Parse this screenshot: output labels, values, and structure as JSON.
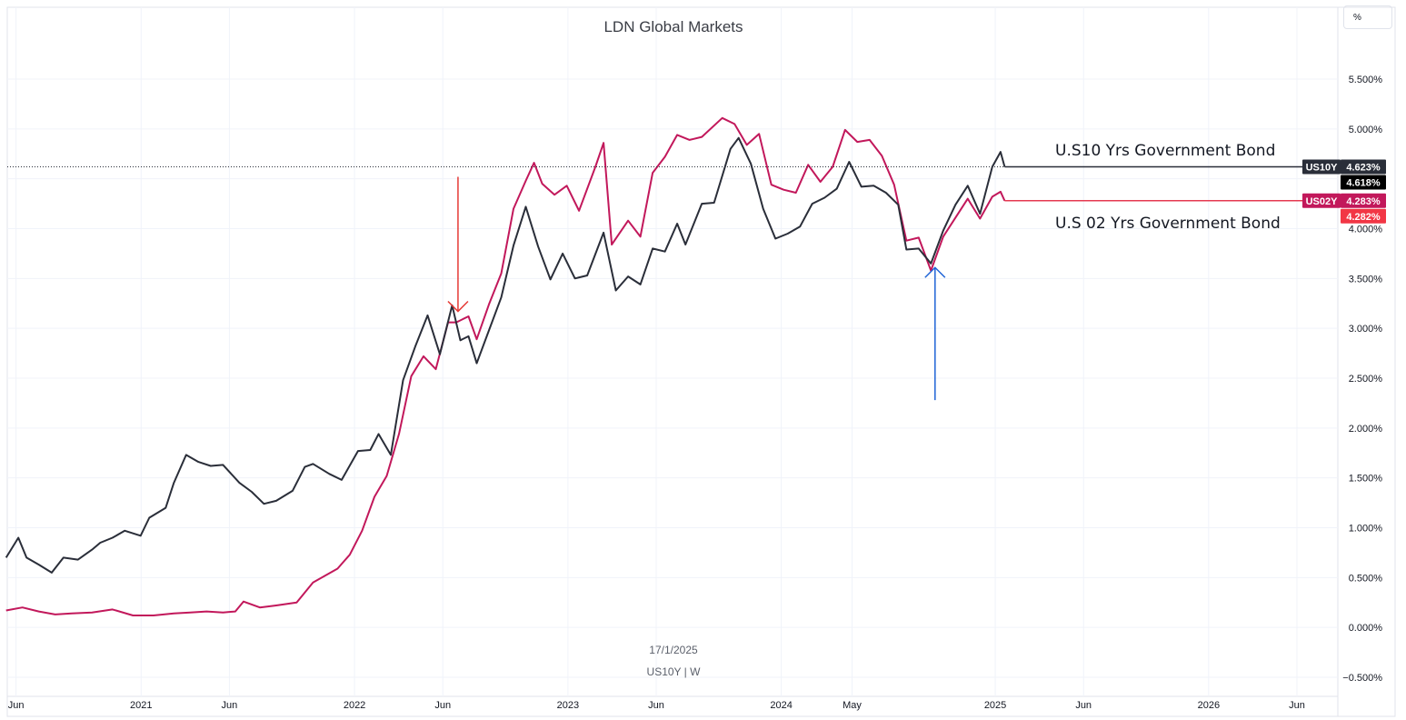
{
  "chart_data": {
    "type": "line",
    "title": "LDN Global Markets",
    "unit_button": "%",
    "watermark": {
      "date": "17/1/2025",
      "symbol": "US10Y | W"
    },
    "y_ticks": [
      5.5,
      5.0,
      4.5,
      4.0,
      3.5,
      3.0,
      2.5,
      2.0,
      1.5,
      1.0,
      0.5,
      0.0,
      -0.5
    ],
    "y_tick_labels": [
      "5.500%",
      "5.000%",
      "4.500%",
      "4.000%",
      "3.500%",
      "3.000%",
      "2.500%",
      "2.000%",
      "1.500%",
      "1.000%",
      "0.500%",
      "0.000%",
      "−0.500%"
    ],
    "ylim": [
      -0.5,
      5.5
    ],
    "x_ticks": [
      {
        "label": "Jun",
        "date": "2020-06-01"
      },
      {
        "label": "2021",
        "date": "2021-01-01"
      },
      {
        "label": "Jun",
        "date": "2021-06-01"
      },
      {
        "label": "2022",
        "date": "2022-01-01"
      },
      {
        "label": "Jun",
        "date": "2022-06-01"
      },
      {
        "label": "2023",
        "date": "2023-01-01"
      },
      {
        "label": "Jun",
        "date": "2023-06-01"
      },
      {
        "label": "2024",
        "date": "2024-01-01"
      },
      {
        "label": "May",
        "date": "2024-05-01"
      },
      {
        "label": "2025",
        "date": "2025-01-01"
      },
      {
        "label": "Jun",
        "date": "2025-06-01"
      },
      {
        "label": "2026",
        "date": "2026-01-01"
      },
      {
        "label": "Jun",
        "date": "2026-06-01"
      }
    ],
    "xlim": [
      "2020-05-17",
      "2026-08-10"
    ],
    "series": [
      {
        "name": "US10Y",
        "color": "#2a2e39",
        "points": [
          [
            "2020-05-15",
            0.7
          ],
          [
            "2020-06-05",
            0.9
          ],
          [
            "2020-06-19",
            0.7
          ],
          [
            "2020-07-10",
            0.63
          ],
          [
            "2020-08-01",
            0.55
          ],
          [
            "2020-08-21",
            0.7
          ],
          [
            "2020-09-15",
            0.68
          ],
          [
            "2020-10-09",
            0.78
          ],
          [
            "2020-10-23",
            0.85
          ],
          [
            "2020-11-13",
            0.9
          ],
          [
            "2020-12-04",
            0.97
          ],
          [
            "2020-12-31",
            0.92
          ],
          [
            "2021-01-15",
            1.1
          ],
          [
            "2021-02-12",
            1.2
          ],
          [
            "2021-02-26",
            1.45
          ],
          [
            "2021-03-19",
            1.73
          ],
          [
            "2021-04-09",
            1.66
          ],
          [
            "2021-04-30",
            1.62
          ],
          [
            "2021-05-21",
            1.63
          ],
          [
            "2021-06-18",
            1.45
          ],
          [
            "2021-07-09",
            1.36
          ],
          [
            "2021-07-30",
            1.24
          ],
          [
            "2021-08-20",
            1.27
          ],
          [
            "2021-09-17",
            1.37
          ],
          [
            "2021-10-08",
            1.61
          ],
          [
            "2021-10-22",
            1.64
          ],
          [
            "2021-11-19",
            1.54
          ],
          [
            "2021-12-10",
            1.48
          ],
          [
            "2022-01-07",
            1.77
          ],
          [
            "2022-01-28",
            1.78
          ],
          [
            "2022-02-11",
            1.94
          ],
          [
            "2022-03-04",
            1.73
          ],
          [
            "2022-03-25",
            2.48
          ],
          [
            "2022-04-15",
            2.82
          ],
          [
            "2022-05-06",
            3.13
          ],
          [
            "2022-05-27",
            2.74
          ],
          [
            "2022-06-17",
            3.23
          ],
          [
            "2022-07-01",
            2.88
          ],
          [
            "2022-07-15",
            2.92
          ],
          [
            "2022-07-29",
            2.65
          ],
          [
            "2022-08-19",
            2.98
          ],
          [
            "2022-09-09",
            3.31
          ],
          [
            "2022-09-30",
            3.83
          ],
          [
            "2022-10-21",
            4.22
          ],
          [
            "2022-11-11",
            3.82
          ],
          [
            "2022-12-02",
            3.49
          ],
          [
            "2022-12-23",
            3.75
          ],
          [
            "2023-01-13",
            3.5
          ],
          [
            "2023-02-03",
            3.53
          ],
          [
            "2023-03-03",
            3.96
          ],
          [
            "2023-03-24",
            3.38
          ],
          [
            "2023-04-14",
            3.52
          ],
          [
            "2023-05-05",
            3.44
          ],
          [
            "2023-05-26",
            3.8
          ],
          [
            "2023-06-16",
            3.77
          ],
          [
            "2023-07-07",
            4.05
          ],
          [
            "2023-07-21",
            3.84
          ],
          [
            "2023-08-18",
            4.25
          ],
          [
            "2023-09-08",
            4.26
          ],
          [
            "2023-10-06",
            4.8
          ],
          [
            "2023-10-20",
            4.91
          ],
          [
            "2023-11-10",
            4.65
          ],
          [
            "2023-12-01",
            4.2
          ],
          [
            "2023-12-22",
            3.9
          ],
          [
            "2024-01-12",
            3.95
          ],
          [
            "2024-02-02",
            4.02
          ],
          [
            "2024-02-23",
            4.25
          ],
          [
            "2024-03-15",
            4.31
          ],
          [
            "2024-04-05",
            4.4
          ],
          [
            "2024-04-26",
            4.67
          ],
          [
            "2024-05-17",
            4.42
          ],
          [
            "2024-06-07",
            4.43
          ],
          [
            "2024-06-28",
            4.36
          ],
          [
            "2024-07-19",
            4.24
          ],
          [
            "2024-08-02",
            3.79
          ],
          [
            "2024-08-23",
            3.8
          ],
          [
            "2024-09-13",
            3.65
          ],
          [
            "2024-10-04",
            3.98
          ],
          [
            "2024-10-25",
            4.24
          ],
          [
            "2024-11-15",
            4.43
          ],
          [
            "2024-12-06",
            4.15
          ],
          [
            "2024-12-27",
            4.62
          ],
          [
            "2025-01-10",
            4.77
          ],
          [
            "2025-01-17",
            4.62
          ]
        ],
        "last_value_label": "4.623%",
        "price_label": "4.618%",
        "label_tag": "US10Y",
        "annotation": "U.S10 Yrs Government Bond"
      },
      {
        "name": "US02Y",
        "color": "#c2185b",
        "points": [
          [
            "2020-05-15",
            0.17
          ],
          [
            "2020-06-12",
            0.2
          ],
          [
            "2020-07-10",
            0.16
          ],
          [
            "2020-08-07",
            0.13
          ],
          [
            "2020-09-04",
            0.14
          ],
          [
            "2020-10-09",
            0.15
          ],
          [
            "2020-11-13",
            0.18
          ],
          [
            "2020-12-18",
            0.12
          ],
          [
            "2021-01-22",
            0.12
          ],
          [
            "2021-02-26",
            0.14
          ],
          [
            "2021-03-26",
            0.15
          ],
          [
            "2021-04-23",
            0.16
          ],
          [
            "2021-05-21",
            0.15
          ],
          [
            "2021-06-11",
            0.16
          ],
          [
            "2021-06-25",
            0.26
          ],
          [
            "2021-07-23",
            0.2
          ],
          [
            "2021-08-20",
            0.22
          ],
          [
            "2021-09-24",
            0.25
          ],
          [
            "2021-10-22",
            0.45
          ],
          [
            "2021-11-12",
            0.52
          ],
          [
            "2021-12-03",
            0.59
          ],
          [
            "2021-12-24",
            0.73
          ],
          [
            "2022-01-14",
            0.97
          ],
          [
            "2022-02-04",
            1.31
          ],
          [
            "2022-02-25",
            1.52
          ],
          [
            "2022-03-18",
            1.94
          ],
          [
            "2022-04-08",
            2.52
          ],
          [
            "2022-04-29",
            2.72
          ],
          [
            "2022-05-20",
            2.59
          ],
          [
            "2022-06-10",
            3.06
          ],
          [
            "2022-06-24",
            3.06
          ],
          [
            "2022-07-15",
            3.12
          ],
          [
            "2022-07-29",
            2.89
          ],
          [
            "2022-08-19",
            3.24
          ],
          [
            "2022-09-09",
            3.55
          ],
          [
            "2022-09-30",
            4.2
          ],
          [
            "2022-10-21",
            4.48
          ],
          [
            "2022-11-04",
            4.66
          ],
          [
            "2022-11-18",
            4.45
          ],
          [
            "2022-12-09",
            4.34
          ],
          [
            "2022-12-30",
            4.43
          ],
          [
            "2023-01-20",
            4.18
          ],
          [
            "2023-02-17",
            4.62
          ],
          [
            "2023-03-03",
            4.86
          ],
          [
            "2023-03-17",
            3.84
          ],
          [
            "2023-04-14",
            4.08
          ],
          [
            "2023-05-05",
            3.92
          ],
          [
            "2023-05-26",
            4.56
          ],
          [
            "2023-06-16",
            4.72
          ],
          [
            "2023-07-07",
            4.94
          ],
          [
            "2023-07-28",
            4.89
          ],
          [
            "2023-08-18",
            4.92
          ],
          [
            "2023-09-22",
            5.11
          ],
          [
            "2023-10-13",
            5.05
          ],
          [
            "2023-11-03",
            4.84
          ],
          [
            "2023-11-24",
            4.95
          ],
          [
            "2023-12-15",
            4.44
          ],
          [
            "2024-01-05",
            4.39
          ],
          [
            "2024-01-26",
            4.36
          ],
          [
            "2024-02-16",
            4.64
          ],
          [
            "2024-03-08",
            4.47
          ],
          [
            "2024-03-29",
            4.62
          ],
          [
            "2024-04-19",
            4.99
          ],
          [
            "2024-05-10",
            4.87
          ],
          [
            "2024-05-31",
            4.89
          ],
          [
            "2024-06-21",
            4.73
          ],
          [
            "2024-07-12",
            4.44
          ],
          [
            "2024-08-02",
            3.88
          ],
          [
            "2024-08-23",
            3.91
          ],
          [
            "2024-09-13",
            3.58
          ],
          [
            "2024-10-04",
            3.92
          ],
          [
            "2024-10-25",
            4.11
          ],
          [
            "2024-11-15",
            4.3
          ],
          [
            "2024-12-06",
            4.1
          ],
          [
            "2024-12-27",
            4.32
          ],
          [
            "2025-01-10",
            4.37
          ],
          [
            "2025-01-17",
            4.28
          ]
        ],
        "last_value_label": "4.283%",
        "price_label": "4.282%",
        "label_tag": "US02Y",
        "annotation": "U.S 02 Yrs Government Bond"
      }
    ],
    "annotations": [
      {
        "type": "arrow-down",
        "color": "#e53935",
        "x": "2022-06-27",
        "y_from": 4.52,
        "y_to": 3.17
      },
      {
        "type": "arrow-up",
        "color": "#1e63d6",
        "x": "2024-09-20",
        "y_from": 2.28,
        "y_to": 3.61
      }
    ],
    "grid": true,
    "legend": "none"
  }
}
